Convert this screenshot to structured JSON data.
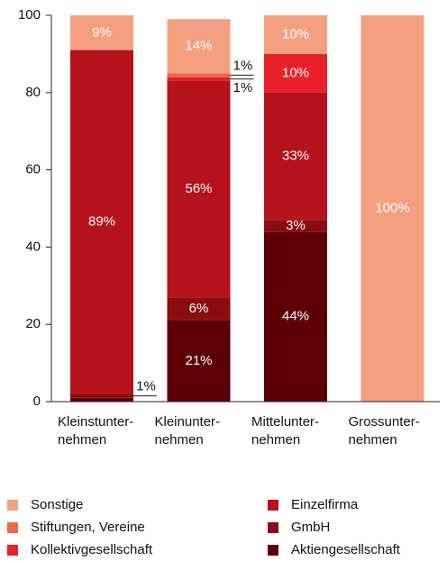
{
  "chart_data": {
    "type": "stacked_bar",
    "categories": [
      "Kleinstunter-\nnehmen",
      "Kleinunter-\nnehmen",
      "Mittelunter-\nnehmen",
      "Grossunter-\nnehmen"
    ],
    "series": [
      {
        "name": "Aktiengesellschaft",
        "color": "#5c0005",
        "values": [
          1,
          21,
          44,
          0
        ],
        "value_labels": [
          null,
          "21%",
          "44%",
          null
        ]
      },
      {
        "name": "GmbH",
        "color": "#8a0b10",
        "values": [
          1,
          6,
          3,
          0
        ],
        "value_labels": [
          "1%",
          "6%",
          "3%",
          null
        ]
      },
      {
        "name": "Einzelfirma",
        "color": "#b5121b",
        "values": [
          89,
          56,
          33,
          0
        ],
        "value_labels": [
          "89%",
          "56%",
          "33%",
          null
        ]
      },
      {
        "name": "Kollektivgesellschaft",
        "color": "#e8202a",
        "values": [
          0,
          1,
          10,
          0
        ],
        "value_labels": [
          null,
          "1%",
          "10%",
          null
        ]
      },
      {
        "name": "Stiftungen, Vereine",
        "color": "#e8694a",
        "values": [
          0,
          1,
          0,
          0
        ],
        "value_labels": [
          null,
          "1%",
          null,
          null
        ]
      },
      {
        "name": "Sonstige",
        "color": "#f4a080",
        "values": [
          9,
          14,
          10,
          100
        ],
        "value_labels": [
          "9%",
          "14%",
          "10%",
          "100%"
        ]
      }
    ],
    "ylim": [
      0,
      100
    ],
    "yticks": [
      0,
      20,
      40,
      60,
      80,
      100
    ]
  }
}
